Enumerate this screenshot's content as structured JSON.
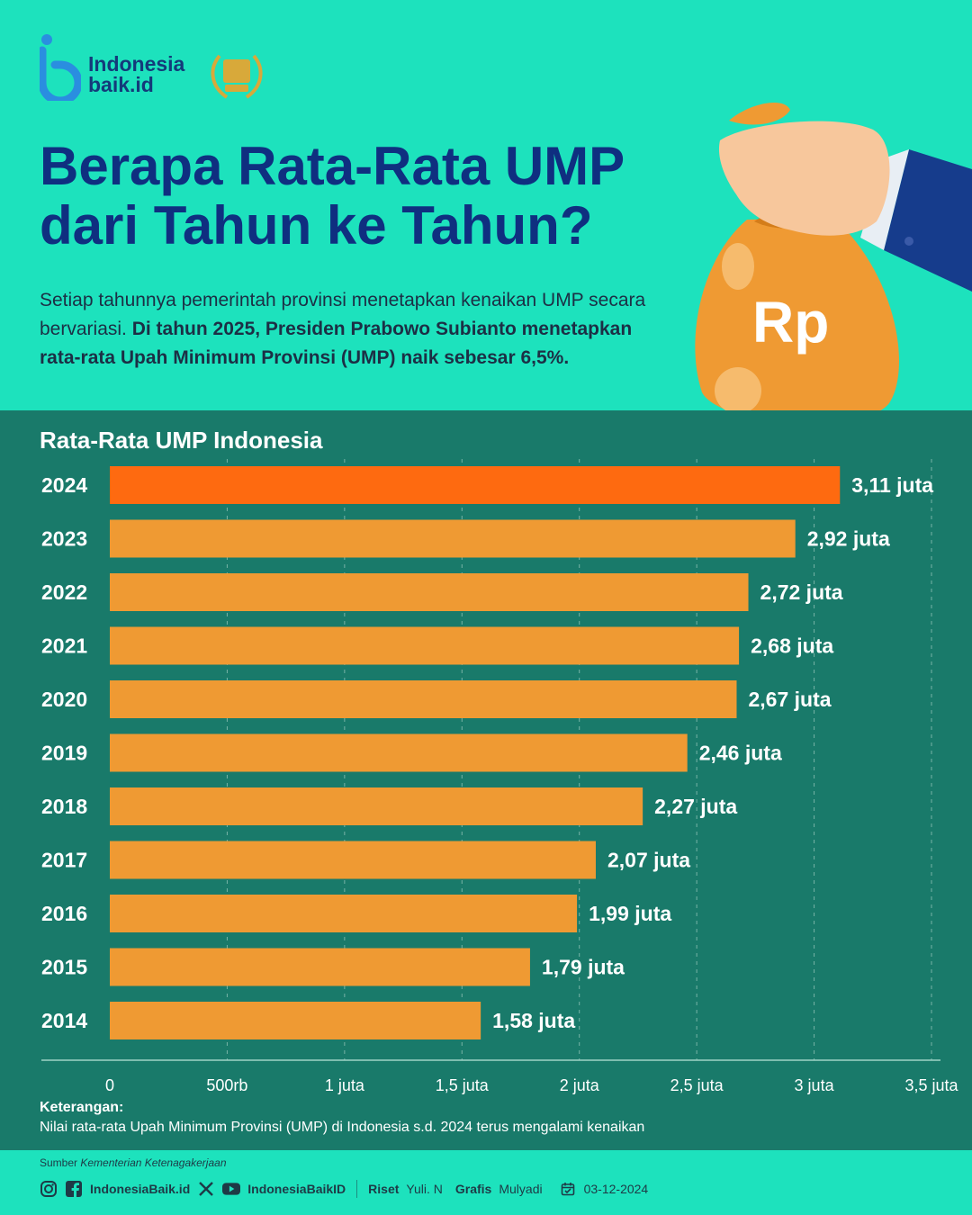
{
  "brand": {
    "line1": "Indonesia",
    "line2": "baik.id"
  },
  "title": {
    "line1": "Berapa Rata-Rata UMP",
    "line2": "dari Tahun ke Tahun?"
  },
  "intro": {
    "plain": "Setiap tahunnya pemerintah provinsi menetapkan kenaikan UMP secara bervariasi. ",
    "bold": "Di tahun 2025, Presiden Prabowo Subianto menetapkan rata-rata Upah Minimum Provinsi (UMP) naik sebesar 6,5%."
  },
  "bag_symbol": "Rp",
  "chart_data": {
    "type": "bar",
    "orientation": "horizontal",
    "title": "Rata-Rata UMP Indonesia",
    "categories": [
      "2024",
      "2023",
      "2022",
      "2021",
      "2020",
      "2019",
      "2018",
      "2017",
      "2016",
      "2015",
      "2014"
    ],
    "values": [
      3.11,
      2.92,
      2.72,
      2.68,
      2.67,
      2.46,
      2.27,
      2.07,
      1.99,
      1.79,
      1.58
    ],
    "value_labels": [
      "3,11 juta",
      "2,92 juta",
      "2,72 juta",
      "2,68 juta",
      "2,67 juta",
      "2,46 juta",
      "2,27 juta",
      "2,07 juta",
      "1,99 juta",
      "1,79 juta",
      "1,58 juta"
    ],
    "unit": "juta",
    "xlim": [
      0,
      3.5
    ],
    "x_ticks": [
      0,
      0.5,
      1,
      1.5,
      2,
      2.5,
      3,
      3.5
    ],
    "x_tick_labels": [
      "0",
      "500rb",
      "1 juta",
      "1,5 juta",
      "2 juta",
      "2,5 juta",
      "3 juta",
      "3,5 juta"
    ],
    "grid": "dashed vertical",
    "colors": {
      "bar": "#ef9a33",
      "highlight": "#fe6a10",
      "panel": "#197a6a",
      "text": "#ffffff"
    },
    "highlight_index": 0
  },
  "note": {
    "heading": "Keterangan:",
    "text": "Nilai rata-rata Upah Minimum Provinsi (UMP) di Indonesia s.d. 2024 terus mengalami kenaikan"
  },
  "footer": {
    "source_label": "Sumber",
    "source_value": "Kementerian Ketenagakerjaan",
    "handle1": "IndonesiaBaik.id",
    "handle2": "IndonesiaBaikID",
    "riset_label": "Riset",
    "riset_value": "Yuli. N",
    "grafis_label": "Grafis",
    "grafis_value": "Mulyadi",
    "date": "03-12-2024",
    "icons": [
      "instagram-icon",
      "facebook-icon",
      "x-icon",
      "youtube-icon",
      "calendar-icon"
    ]
  }
}
